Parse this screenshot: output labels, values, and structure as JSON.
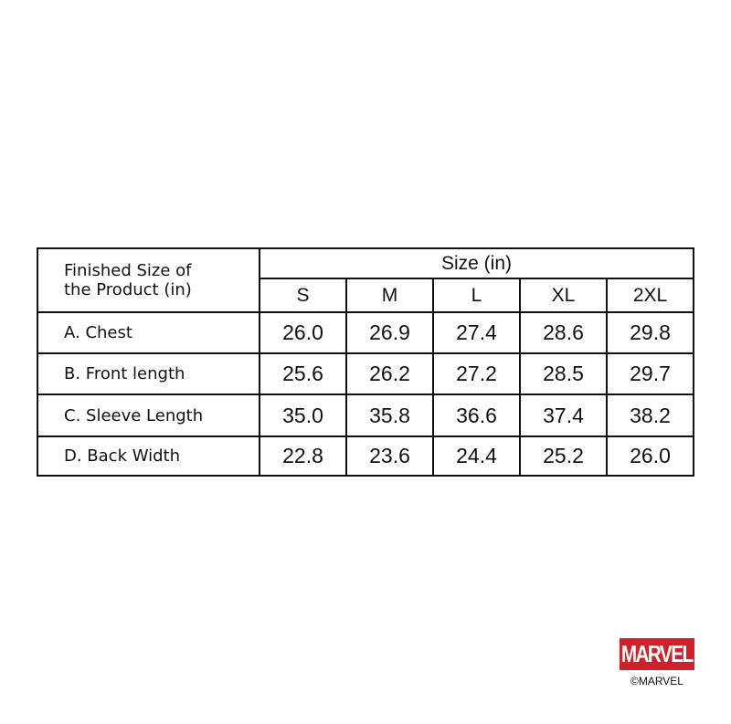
{
  "table": {
    "corner_label_line1": "Finished Size of",
    "corner_label_line2": "the Product (in)",
    "group_header": "Size (in)",
    "sizes": [
      "S",
      "M",
      "L",
      "XL",
      "2XL"
    ],
    "rows": [
      {
        "label": "A. Chest",
        "values": [
          "26.0",
          "26.9",
          "27.4",
          "28.6",
          "29.8"
        ]
      },
      {
        "label": "B. Front length",
        "values": [
          "25.6",
          "26.2",
          "27.2",
          "28.5",
          "29.7"
        ]
      },
      {
        "label": "C. Sleeve Length",
        "values": [
          "35.0",
          "35.8",
          "36.6",
          "37.4",
          "38.2"
        ]
      },
      {
        "label": "D. Back Width",
        "values": [
          "22.8",
          "23.6",
          "24.4",
          "25.2",
          "26.0"
        ]
      }
    ]
  },
  "brand": {
    "logo_text": "MARVEL",
    "copyright": "©MARVEL",
    "logo_color": "#d0202a"
  }
}
